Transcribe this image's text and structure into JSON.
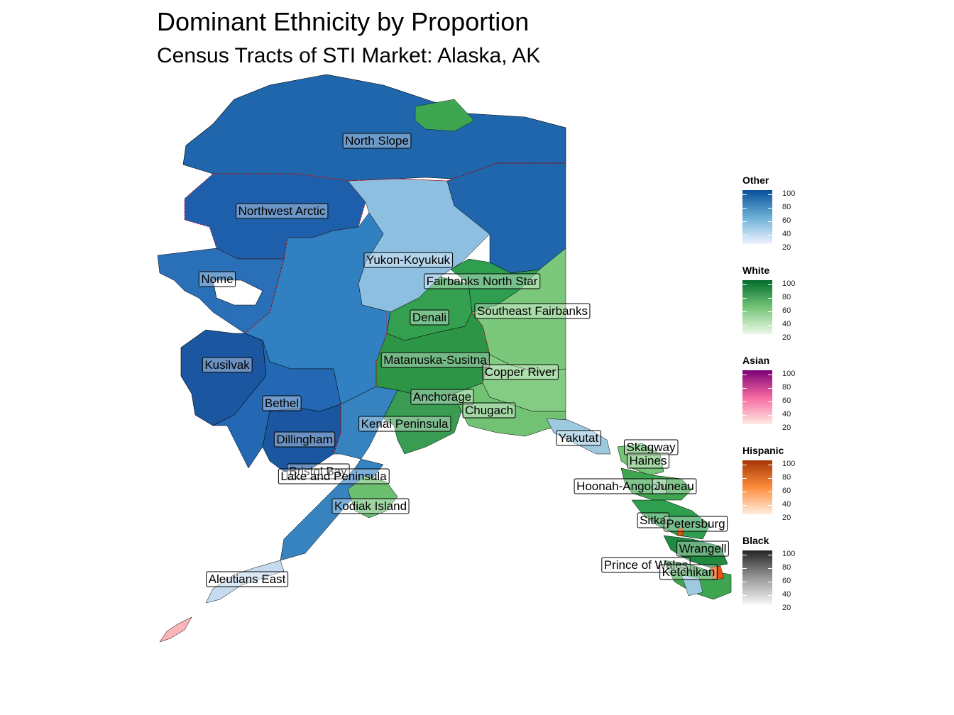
{
  "title": "Dominant Ethnicity by Proportion",
  "subtitle": "Census Tracts of STI Market: Alaska, AK",
  "map_labels": [
    "North Slope",
    "Northwest Arctic",
    "Yukon-Koyukuk",
    "Nome",
    "Fairbanks North Star",
    "Southeast Fairbanks",
    "Denali",
    "Kusilvak",
    "Matanuska-Susitna",
    "Copper River",
    "Anchorage",
    "Chugach",
    "Bethel",
    "Kenai Peninsula",
    "Dillingham",
    "Yakutat",
    "Skagway",
    "Haines",
    "Bristol Bay",
    "Lake and Peninsula",
    "Hoonah-Angoon",
    "Juneau",
    "Kodiak Island",
    "Sitka",
    "Petersburg",
    "Wrangell",
    "Prince of Wales",
    "Ketchikan",
    "Aleutians East"
  ],
  "legends": [
    {
      "title": "Other",
      "colors": [
        "#eff3ff",
        "#6baed6",
        "#08519c"
      ],
      "ticks": [
        "100",
        "80",
        "60",
        "40",
        "20"
      ]
    },
    {
      "title": "White",
      "colors": [
        "#edf8e9",
        "#74c476",
        "#006d2c"
      ],
      "ticks": [
        "100",
        "80",
        "60",
        "40",
        "20"
      ]
    },
    {
      "title": "Asian",
      "colors": [
        "#feebe2",
        "#f768a1",
        "#7a0177"
      ],
      "ticks": [
        "100",
        "80",
        "60",
        "40",
        "20"
      ]
    },
    {
      "title": "Hispanic",
      "colors": [
        "#feedde",
        "#fd8d3c",
        "#a63603"
      ],
      "ticks": [
        "100",
        "80",
        "60",
        "40",
        "20"
      ]
    },
    {
      "title": "Black",
      "colors": [
        "#f7f7f7",
        "#969696",
        "#252525"
      ],
      "ticks": [
        "100",
        "80",
        "60",
        "40",
        "20"
      ]
    }
  ],
  "palette": {
    "other_dark": "#1f5ea8",
    "other_mid": "#3182bd",
    "other_light": "#9ecae1",
    "white_dark": "#31a354",
    "white_light": "#74c476",
    "asian_light": "#fbb4b9",
    "hispanic": "#e6550d",
    "border_dashed": "#e31a1c"
  }
}
